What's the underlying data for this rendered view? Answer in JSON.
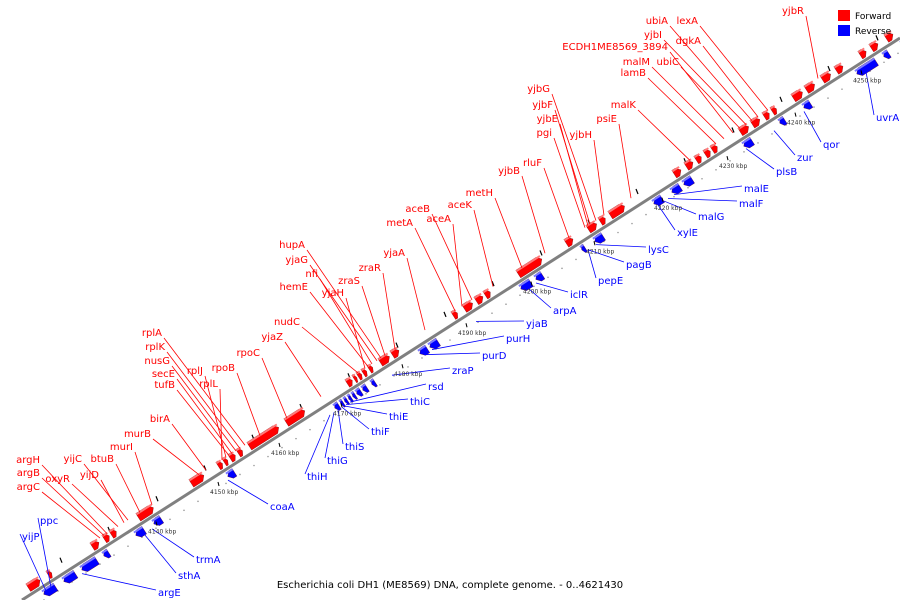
{
  "caption": "Escherichia coli DH1 (ME8569) DNA, complete genome. - 0..4621430",
  "legend": [
    {
      "label": "Forward",
      "color": "#ff0000"
    },
    {
      "label": "Reverse",
      "color": "#0000ff"
    }
  ],
  "colors": {
    "forward": "#ff0000",
    "reverse": "#0000ff",
    "backbone": "#808080"
  },
  "ticks": [
    "4140 kbp",
    "4150 kbp",
    "4160 kbp",
    "4170 kbp",
    "4180 kbp",
    "4190 kbp",
    "4200 kbp",
    "4210 kbp",
    "4220 kbp",
    "4230 kbp",
    "4240 kbp",
    "4250 kbp"
  ],
  "forward_genes": [
    "yjbR",
    "lexA",
    "dgkA",
    "ubiA",
    "yjbI",
    "ubiC",
    "ECDH1ME8569_3894",
    "malM",
    "lamB",
    "malK",
    "psiE",
    "yjbH",
    "yjbG",
    "yjbF",
    "yjbE",
    "pgi",
    "rluF",
    "yjbB",
    "metH",
    "aceK",
    "aceB",
    "aceA",
    "metA",
    "yjaA",
    "zraR",
    "zraS",
    "hupA",
    "yjaG",
    "nfi",
    "hemE",
    "yjaH",
    "nudC",
    "yjaZ",
    "rpoC",
    "rpoB",
    "rplA",
    "rplK",
    "nusG",
    "secE",
    "tufB",
    "rplJ",
    "rplL",
    "birA",
    "murB",
    "murI",
    "btuB",
    "yijC",
    "yijD",
    "oxyR",
    "argH",
    "argB",
    "argC"
  ],
  "reverse_genes": [
    "uvrA",
    "qor",
    "zur",
    "plsB",
    "malE",
    "malF",
    "malG",
    "xylE",
    "lysC",
    "pagB",
    "pepE",
    "iclR",
    "arpA",
    "yjaB",
    "purH",
    "purD",
    "zraP",
    "rsd",
    "thiC",
    "thiE",
    "thiF",
    "thiS",
    "thiG",
    "thiH",
    "coaA",
    "trmA",
    "sthA",
    "argE",
    "ppc",
    "yijP"
  ]
}
